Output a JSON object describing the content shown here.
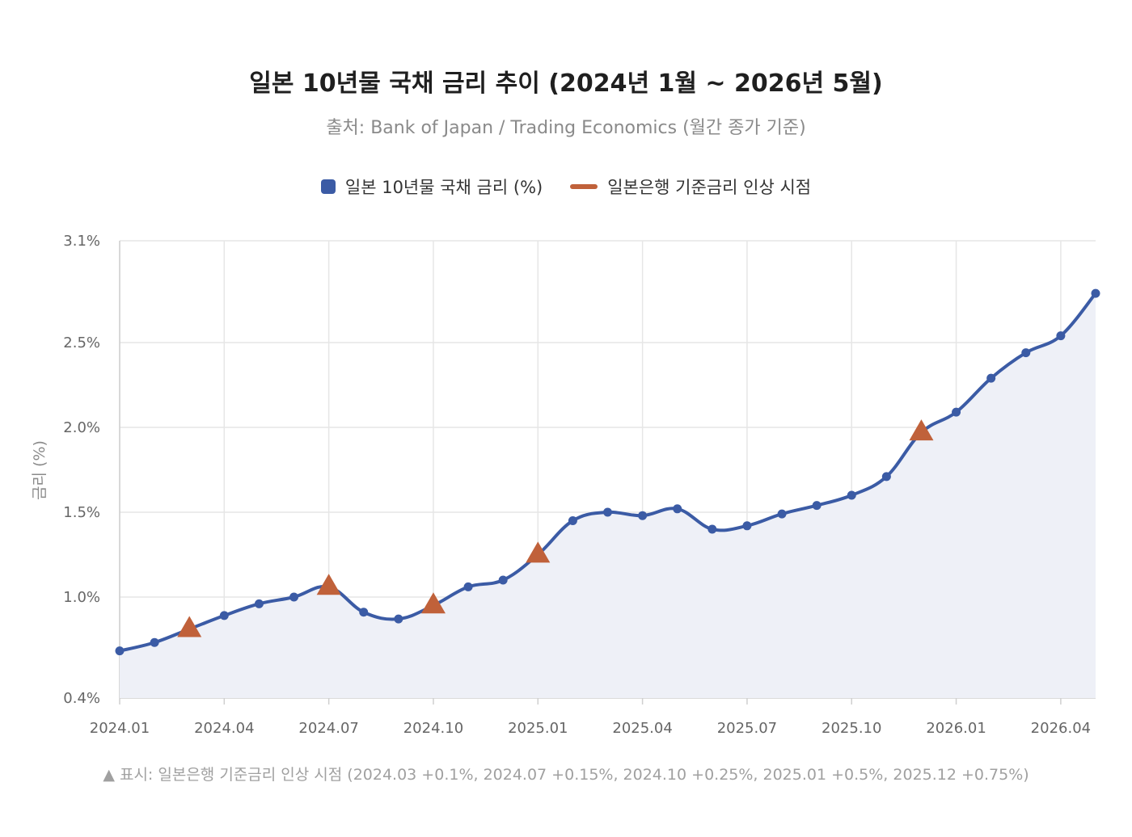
{
  "chart_data": {
    "type": "line",
    "title": "일본 10년물 국채 금리 추이 (2024년 1월 ~ 2026년 5월)",
    "subtitle": "출처: Bank of Japan / Trading Economics (월간 종가 기준)",
    "ylabel": "금리 (%)",
    "xlabel": "",
    "ylim": [
      0.4,
      3.1
    ],
    "yticks": [
      "0.4%",
      "1.0%",
      "1.5%",
      "2.0%",
      "2.5%",
      "3.1%"
    ],
    "ytick_values": [
      0.4,
      1.0,
      1.5,
      2.0,
      2.5,
      3.1
    ],
    "xticks": [
      "2024.01",
      "2024.04",
      "2024.07",
      "2024.10",
      "2025.01",
      "2025.04",
      "2025.07",
      "2025.10",
      "2026.01",
      "2026.04"
    ],
    "xtick_values": [
      0,
      3,
      6,
      9,
      12,
      15,
      18,
      21,
      24,
      27
    ],
    "grid": true,
    "legend_position": "top-center",
    "series": [
      {
        "name": "일본 10년물 국채 금리 (%)",
        "color": "#3b5ba5",
        "x": [
          0,
          1,
          2,
          3,
          4,
          5,
          6,
          7,
          8,
          9,
          10,
          11,
          12,
          13,
          14,
          15,
          16,
          17,
          18,
          19,
          20,
          21,
          22,
          23,
          24,
          25,
          26,
          27,
          28
        ],
        "values": [
          0.68,
          0.73,
          0.81,
          0.89,
          0.96,
          1.0,
          1.06,
          0.91,
          0.87,
          0.95,
          1.06,
          1.1,
          1.25,
          1.45,
          1.5,
          1.48,
          1.52,
          1.4,
          1.42,
          1.49,
          1.54,
          1.6,
          1.71,
          1.97,
          2.09,
          2.29,
          2.44,
          2.54,
          2.79
        ]
      },
      {
        "name": "일본은행 기준금리 인상 시점",
        "color": "#c0613a",
        "x": [
          2,
          6,
          9,
          12,
          23
        ],
        "labels": [
          "2024.03",
          "2024.07",
          "2024.10",
          "2025.01",
          "2025.12"
        ],
        "values": [
          0.81,
          1.06,
          0.95,
          1.25,
          1.97
        ]
      }
    ],
    "footnote": "▲ 표시: 일본은행 기준금리 인상 시점 (2024.03 +0.1%, 2024.07 +0.15%, 2024.10 +0.25%, 2025.01 +0.5%, 2025.12 +0.75%)"
  }
}
